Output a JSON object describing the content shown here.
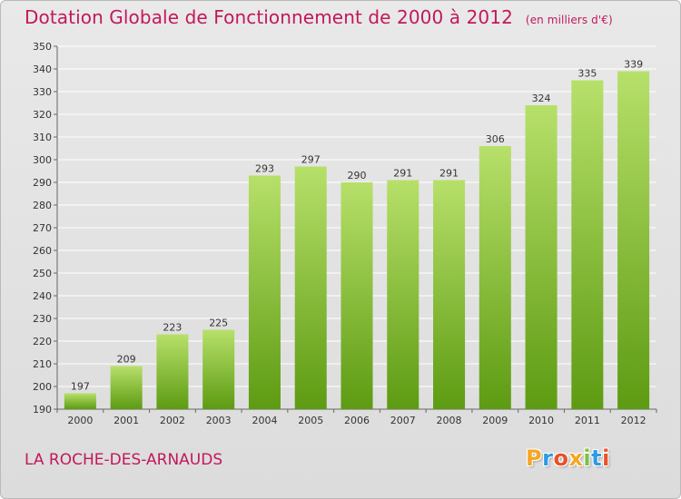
{
  "header": {
    "title": "Dotation Globale de Fonctionnement de 2000 à 2012",
    "unit": "(en milliers d'€)"
  },
  "footer": {
    "commune": "LA ROCHE-DES-ARNAUDS",
    "brand": "Proxiti"
  },
  "colors": {
    "bar_light": "#b7e06a",
    "bar_dark": "#5d9b12",
    "title": "#c2185b",
    "grid": "#ffffff"
  },
  "chart_data": {
    "type": "bar",
    "title": "Dotation Globale de Fonctionnement de 2000 à 2012",
    "xlabel": "",
    "ylabel": "",
    "categories": [
      "2000",
      "2001",
      "2002",
      "2003",
      "2004",
      "2005",
      "2006",
      "2007",
      "2008",
      "2009",
      "2010",
      "2011",
      "2012"
    ],
    "values": [
      197,
      209,
      223,
      225,
      293,
      297,
      290,
      291,
      291,
      306,
      324,
      335,
      339
    ],
    "ylim": [
      190,
      350
    ],
    "ytick_step": 10,
    "grid": true,
    "data_labels": true
  }
}
